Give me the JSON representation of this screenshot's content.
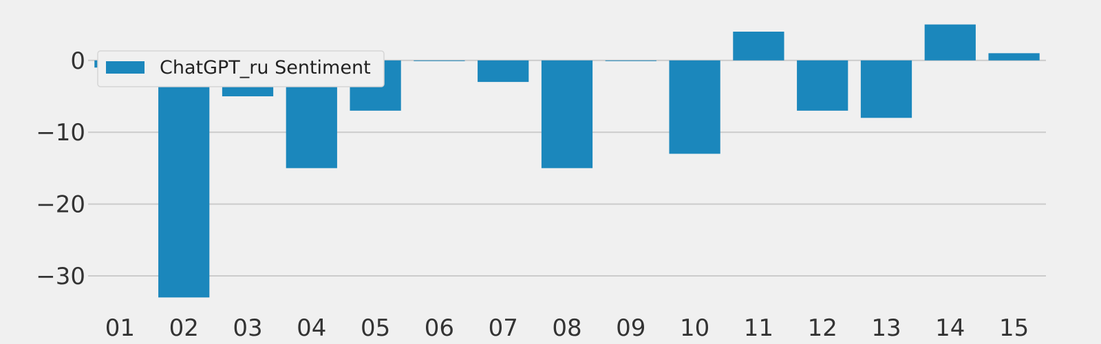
{
  "chart_data": {
    "type": "bar",
    "categories": [
      "01",
      "02",
      "03",
      "04",
      "05",
      "06",
      "07",
      "08",
      "09",
      "10",
      "11",
      "12",
      "13",
      "14",
      "15"
    ],
    "series": [
      {
        "name": "ChatGPT_ru Sentiment",
        "values": [
          -1,
          -33,
          -5,
          -15,
          -7,
          0,
          -3,
          -15,
          0,
          -13,
          4,
          -7,
          -8,
          5,
          1
        ],
        "color": "#1b87bc"
      }
    ],
    "ylim": [
      -34.5,
      6.3
    ],
    "yticks": [
      0,
      -10,
      -20,
      -30
    ],
    "ytick_labels": [
      "0",
      "−10",
      "−20",
      "−30"
    ],
    "grid": true,
    "legend_position": "top-left",
    "colors": {
      "background": "#f0f0f0",
      "grid": "#cbcbcb",
      "bar": "#1b87bc",
      "text": "#333333"
    }
  }
}
